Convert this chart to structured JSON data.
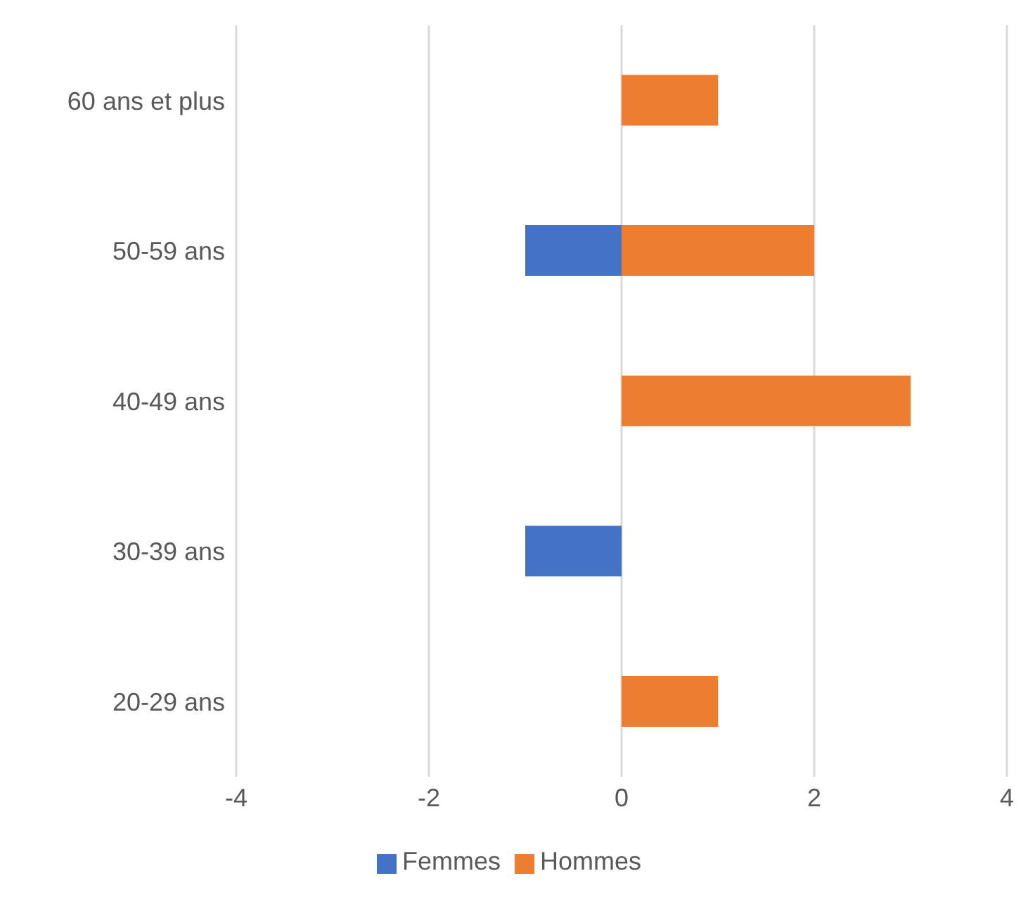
{
  "chart_data": {
    "type": "bar",
    "orientation": "horizontal",
    "stacked": true,
    "categories": [
      "60 ans et plus",
      "50-59 ans",
      "40-49 ans",
      "30-39 ans",
      "20-29 ans"
    ],
    "series": [
      {
        "name": "Femmes",
        "color": "#4472c4",
        "values": [
          null,
          -1,
          null,
          -1,
          null
        ]
      },
      {
        "name": "Hommes",
        "color": "#ed7d31",
        "values": [
          1,
          2,
          3,
          null,
          1
        ]
      }
    ],
    "xlim": [
      -4,
      4
    ],
    "xticks": [
      -4,
      -2,
      0,
      2,
      4
    ],
    "grid": "x",
    "legend": "bottom"
  }
}
